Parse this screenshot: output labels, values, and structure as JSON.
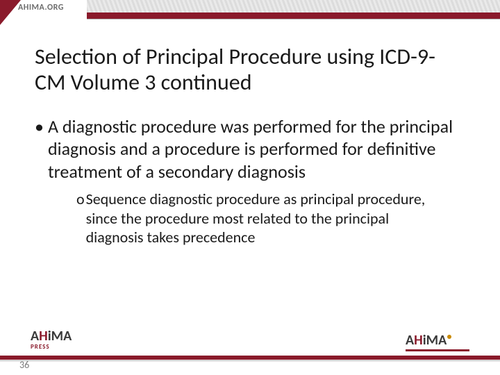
{
  "banner": {
    "site": "AHIMA.ORG"
  },
  "title": "Selection of Principal Procedure using ICD-9-CM Volume 3 continued",
  "bullets": [
    {
      "marker": "•",
      "text": "A diagnostic procedure was performed for the principal diagnosis and a procedure is performed for definitive treatment of a secondary diagnosis",
      "sub": [
        {
          "marker": "o",
          "text": "Sequence diagnostic procedure as principal procedure, since the procedure most related to the principal diagnosis takes precedence"
        }
      ]
    }
  ],
  "footer": {
    "logo_left_main": "AHiMA",
    "logo_left_sub": "PRESS",
    "logo_right": "AHiMA",
    "page_number": "36"
  },
  "colors": {
    "brand_red": "#8a1a2b",
    "text": "#1a1a1a",
    "muted": "#7a7a7a"
  }
}
